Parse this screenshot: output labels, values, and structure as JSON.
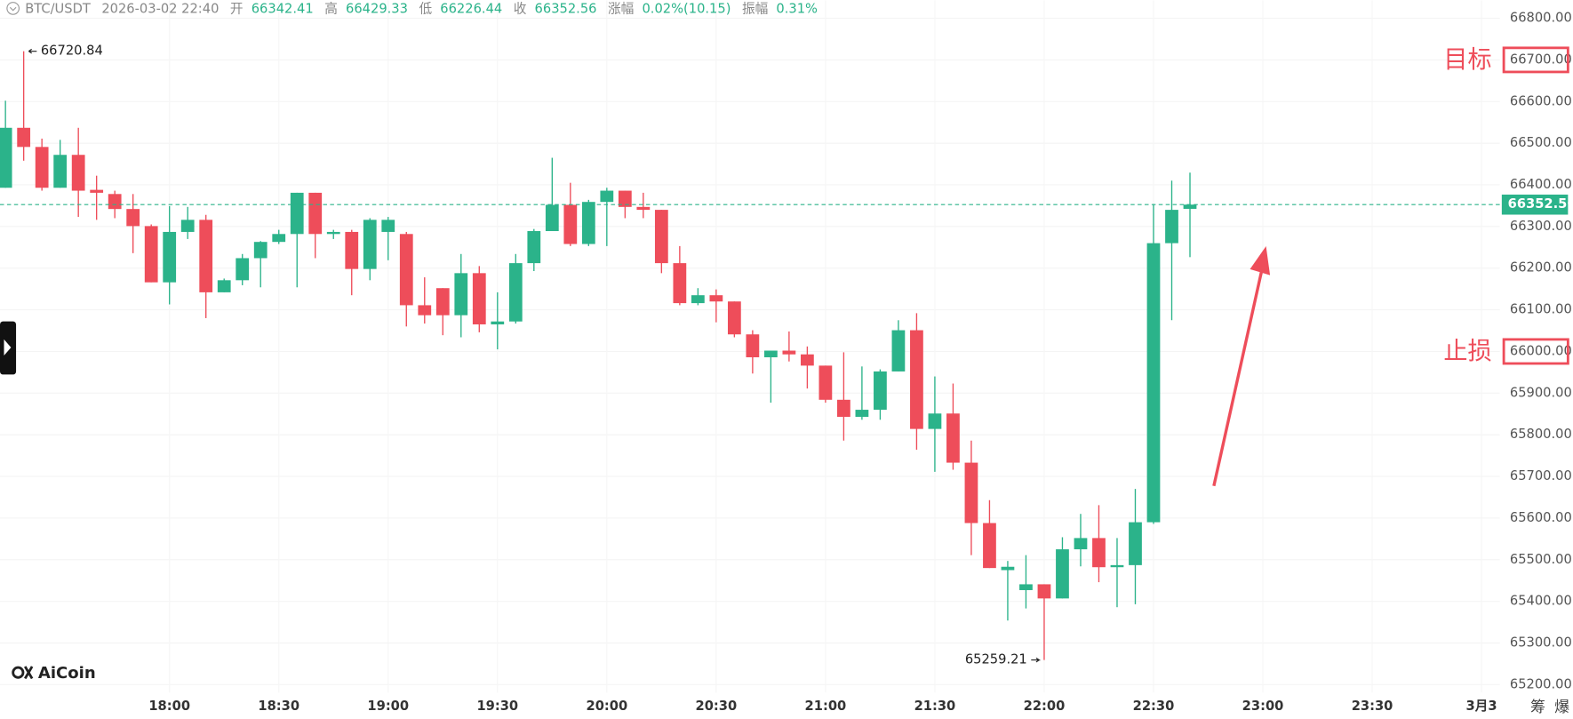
{
  "chart_data": {
    "type": "candlestick",
    "header": {
      "symbol": "BTC/USDT",
      "time": "2026-03-02 22:40",
      "open_label": "开",
      "open": "66342.41",
      "high_label": "高",
      "high": "66429.33",
      "low_label": "低",
      "low": "66226.44",
      "close_label": "收",
      "close": "66352.56",
      "change_label": "涨幅",
      "change": "0.02%(10.15)",
      "amplitude_label": "振幅",
      "amplitude": "0.31%"
    },
    "logo": "AiCoin",
    "side_buttons": [
      "筹",
      "爆"
    ],
    "up_color": "#2bb38a",
    "down_color": "#ee4d5a",
    "grid": true,
    "last_price_line": true,
    "xlim": [
      -0.3,
      82
    ],
    "xticks": [
      {
        "value": 9,
        "label": "18:00"
      },
      {
        "value": 15,
        "label": "18:30"
      },
      {
        "value": 21,
        "label": "19:00"
      },
      {
        "value": 27,
        "label": "19:30"
      },
      {
        "value": 33,
        "label": "20:00"
      },
      {
        "value": 39,
        "label": "20:30"
      },
      {
        "value": 45,
        "label": "21:00"
      },
      {
        "value": 51,
        "label": "21:30"
      },
      {
        "value": 57,
        "label": "22:00"
      },
      {
        "value": 63,
        "label": "22:30"
      },
      {
        "value": 69,
        "label": "23:00"
      },
      {
        "value": 75,
        "label": "23:30"
      },
      {
        "value": 81,
        "label": "3月3"
      }
    ],
    "ylim": [
      65181,
      66843
    ],
    "yticks": [
      {
        "value": 65200,
        "label": "65200.00"
      },
      {
        "value": 65300,
        "label": "65300.00"
      },
      {
        "value": 65400,
        "label": "65400.00"
      },
      {
        "value": 65500,
        "label": "65500.00"
      },
      {
        "value": 65600,
        "label": "65600.00"
      },
      {
        "value": 65700,
        "label": "65700.00"
      },
      {
        "value": 65800,
        "label": "65800.00"
      },
      {
        "value": 65900,
        "label": "65900.00"
      },
      {
        "value": 66000,
        "label": "66000.00"
      },
      {
        "value": 66100,
        "label": "66100.00"
      },
      {
        "value": 66200,
        "label": "66200.00"
      },
      {
        "value": 66300,
        "label": "66300.00"
      },
      {
        "value": 66400,
        "label": "66400.00"
      },
      {
        "value": 66500,
        "label": "66500.00"
      },
      {
        "value": 66600,
        "label": "66600.00"
      },
      {
        "value": 66700,
        "label": "66700.00"
      },
      {
        "value": 66800,
        "label": "66800.00"
      }
    ],
    "annotations": [
      {
        "text": "目标",
        "tick": 15
      },
      {
        "text": "止损",
        "tick": 8
      }
    ],
    "high_marker": 1,
    "low_marker": 57,
    "candles": [
      {
        "open": 66393,
        "high": 66602,
        "low": 66393,
        "close": 66537
      },
      {
        "open": 66537,
        "high": 66720.84,
        "low": 66458,
        "close": 66491
      },
      {
        "open": 66491,
        "high": 66511,
        "low": 66386,
        "close": 66393
      },
      {
        "open": 66393,
        "high": 66508,
        "low": 66393,
        "close": 66472
      },
      {
        "open": 66472,
        "high": 66537,
        "low": 66323,
        "close": 66386
      },
      {
        "open": 66388,
        "high": 66422,
        "low": 66316,
        "close": 66381
      },
      {
        "open": 66378,
        "high": 66386,
        "low": 66320,
        "close": 66342
      },
      {
        "open": 66342,
        "high": 66378,
        "low": 66236,
        "close": 66301
      },
      {
        "open": 66301,
        "high": 66305,
        "low": 66166,
        "close": 66166
      },
      {
        "open": 66166,
        "high": 66349,
        "low": 66113,
        "close": 66287
      },
      {
        "open": 66287,
        "high": 66347,
        "low": 66270,
        "close": 66316
      },
      {
        "open": 66316,
        "high": 66328,
        "low": 66080,
        "close": 66142
      },
      {
        "open": 66142,
        "high": 66175,
        "low": 66142,
        "close": 66171
      },
      {
        "open": 66171,
        "high": 66234,
        "low": 66159,
        "close": 66224
      },
      {
        "open": 66224,
        "high": 66265,
        "low": 66154,
        "close": 66263
      },
      {
        "open": 66263,
        "high": 66292,
        "low": 66258,
        "close": 66282
      },
      {
        "open": 66282,
        "high": 66381,
        "low": 66154,
        "close": 66381
      },
      {
        "open": 66381,
        "high": 66381,
        "low": 66224,
        "close": 66282
      },
      {
        "open": 66282,
        "high": 66292,
        "low": 66270,
        "close": 66287
      },
      {
        "open": 66287,
        "high": 66292,
        "low": 66135,
        "close": 66198
      },
      {
        "open": 66198,
        "high": 66320,
        "low": 66171,
        "close": 66316
      },
      {
        "open": 66287,
        "high": 66323,
        "low": 66219,
        "close": 66316
      },
      {
        "open": 66282,
        "high": 66287,
        "low": 66060,
        "close": 66111
      },
      {
        "open": 66111,
        "high": 66178,
        "low": 66067,
        "close": 66087
      },
      {
        "open": 66152,
        "high": 66152,
        "low": 66039,
        "close": 66087
      },
      {
        "open": 66087,
        "high": 66234,
        "low": 66034,
        "close": 66188
      },
      {
        "open": 66188,
        "high": 66205,
        "low": 66046,
        "close": 66065
      },
      {
        "open": 66065,
        "high": 66142,
        "low": 66005,
        "close": 66072
      },
      {
        "open": 66072,
        "high": 66234,
        "low": 66067,
        "close": 66212
      },
      {
        "open": 66212,
        "high": 66294,
        "low": 66193,
        "close": 66289
      },
      {
        "open": 66289,
        "high": 66465,
        "low": 66289,
        "close": 66352
      },
      {
        "open": 66352,
        "high": 66405,
        "low": 66253,
        "close": 66258
      },
      {
        "open": 66258,
        "high": 66364,
        "low": 66253,
        "close": 66359
      },
      {
        "open": 66359,
        "high": 66393,
        "low": 66253,
        "close": 66386
      },
      {
        "open": 66386,
        "high": 66386,
        "low": 66320,
        "close": 66347
      },
      {
        "open": 66347,
        "high": 66381,
        "low": 66320,
        "close": 66340
      },
      {
        "open": 66340,
        "high": 66340,
        "low": 66188,
        "close": 66212
      },
      {
        "open": 66212,
        "high": 66253,
        "low": 66111,
        "close": 66116
      },
      {
        "open": 66116,
        "high": 66152,
        "low": 66111,
        "close": 66135
      },
      {
        "open": 66135,
        "high": 66149,
        "low": 66070,
        "close": 66120
      },
      {
        "open": 66120,
        "high": 66120,
        "low": 66034,
        "close": 66041
      },
      {
        "open": 66041,
        "high": 66051,
        "low": 65947,
        "close": 65986
      },
      {
        "open": 65986,
        "high": 66002,
        "low": 65877,
        "close": 66002
      },
      {
        "open": 66002,
        "high": 66048,
        "low": 65976,
        "close": 65993
      },
      {
        "open": 65993,
        "high": 66012,
        "low": 65911,
        "close": 65966
      },
      {
        "open": 65966,
        "high": 65966,
        "low": 65877,
        "close": 65884
      },
      {
        "open": 65884,
        "high": 65998,
        "low": 65786,
        "close": 65843
      },
      {
        "open": 65843,
        "high": 65964,
        "low": 65836,
        "close": 65860
      },
      {
        "open": 65860,
        "high": 65957,
        "low": 65836,
        "close": 65952
      },
      {
        "open": 65952,
        "high": 66075,
        "low": 65952,
        "close": 66051
      },
      {
        "open": 66051,
        "high": 66092,
        "low": 65764,
        "close": 65814
      },
      {
        "open": 65814,
        "high": 65940,
        "low": 65711,
        "close": 65851
      },
      {
        "open": 65851,
        "high": 65923,
        "low": 65716,
        "close": 65733
      },
      {
        "open": 65733,
        "high": 65786,
        "low": 65511,
        "close": 65588
      },
      {
        "open": 65588,
        "high": 65643,
        "low": 65480,
        "close": 65480
      },
      {
        "open": 65475,
        "high": 65497,
        "low": 65354,
        "close": 65483
      },
      {
        "open": 65427,
        "high": 65511,
        "low": 65383,
        "close": 65441
      },
      {
        "open": 65441,
        "high": 65441,
        "low": 65259.21,
        "close": 65407
      },
      {
        "open": 65407,
        "high": 65554,
        "low": 65407,
        "close": 65525
      },
      {
        "open": 65525,
        "high": 65610,
        "low": 65484,
        "close": 65552
      },
      {
        "open": 65552,
        "high": 65631,
        "low": 65446,
        "close": 65482
      },
      {
        "open": 65482,
        "high": 65552,
        "low": 65386,
        "close": 65487
      },
      {
        "open": 65487,
        "high": 65670,
        "low": 65393,
        "close": 65590
      },
      {
        "open": 65590,
        "high": 66354,
        "low": 65586,
        "close": 66260
      },
      {
        "open": 66260,
        "high": 66410,
        "low": 66075,
        "close": 66340
      },
      {
        "open": 66342.41,
        "high": 66429.33,
        "low": 66226.44,
        "close": 66352.56
      }
    ]
  }
}
